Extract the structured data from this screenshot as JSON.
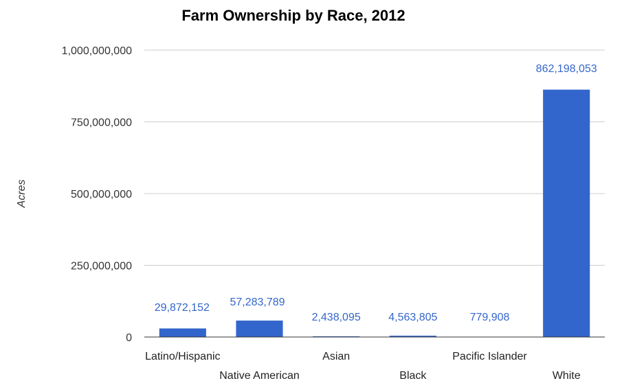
{
  "chart_data": {
    "type": "bar",
    "title": "Farm Ownership by Race, 2012",
    "xlabel": "",
    "ylabel": "Acres",
    "ylim": [
      0,
      1000000000
    ],
    "yticks": [
      0,
      250000000,
      500000000,
      750000000,
      1000000000
    ],
    "ytick_labels": [
      "0",
      "250,000,000",
      "500,000,000",
      "750,000,000",
      "1,000,000,000"
    ],
    "categories": [
      "Latino/Hispanic",
      "Native American",
      "Asian",
      "Black",
      "Pacific Islander",
      "White"
    ],
    "values": [
      29872152,
      57283789,
      2438095,
      4563805,
      779908,
      862198053
    ],
    "data_labels": [
      "29,872,152",
      "57,283,789",
      "2,438,095",
      "4,563,805",
      "779,908",
      "862,198,053"
    ],
    "grid": true,
    "legend": "none",
    "colors": {
      "bar": "#3366cc",
      "label": "#3366cc",
      "grid": "#cccccc",
      "axis": "#333333"
    }
  }
}
